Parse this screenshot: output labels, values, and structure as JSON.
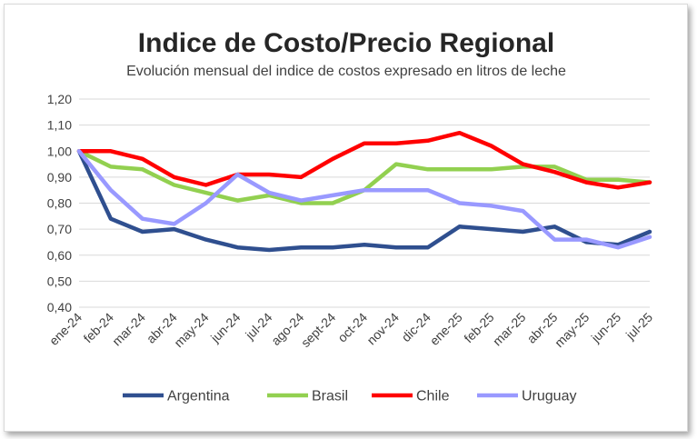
{
  "chart_data": {
    "type": "line",
    "title": "Indice de Costo/Precio Regional",
    "subtitle": "Evolución mensual del indice de costos expresado en litros de leche",
    "xlabel": "",
    "ylabel": "",
    "ylim": [
      0.4,
      1.2
    ],
    "ytick_step": 0.1,
    "ytick_labels": [
      "0,40",
      "0,50",
      "0,60",
      "0,70",
      "0,80",
      "0,90",
      "1,00",
      "1,10",
      "1,20"
    ],
    "grid": true,
    "legend_position": "bottom",
    "categories": [
      "ene-24",
      "feb-24",
      "mar-24",
      "abr-24",
      "may-24",
      "jun-24",
      "jul-24",
      "ago-24",
      "sept-24",
      "oct-24",
      "nov-24",
      "dic-24",
      "ene-25",
      "feb-25",
      "mar-25",
      "abr-25",
      "may-25",
      "jun-25",
      "jul-25"
    ],
    "series": [
      {
        "name": "Argentina",
        "color": "#2f4f8f",
        "values": [
          1.0,
          0.74,
          0.69,
          0.7,
          0.66,
          0.63,
          0.62,
          0.63,
          0.63,
          0.64,
          0.63,
          0.63,
          0.71,
          0.7,
          0.69,
          0.71,
          0.65,
          0.64,
          0.69
        ]
      },
      {
        "name": "Brasil",
        "color": "#92d050",
        "values": [
          1.0,
          0.94,
          0.93,
          0.87,
          0.84,
          0.81,
          0.83,
          0.8,
          0.8,
          0.85,
          0.95,
          0.93,
          0.93,
          0.93,
          0.94,
          0.94,
          0.89,
          0.89,
          0.88
        ]
      },
      {
        "name": "Chile",
        "color": "#ff0000",
        "values": [
          1.0,
          1.0,
          0.97,
          0.9,
          0.87,
          0.91,
          0.91,
          0.9,
          0.97,
          1.03,
          1.03,
          1.04,
          1.07,
          1.02,
          0.95,
          0.92,
          0.88,
          0.86,
          0.88
        ]
      },
      {
        "name": "Uruguay",
        "color": "#9999ff",
        "values": [
          1.0,
          0.85,
          0.74,
          0.72,
          0.8,
          0.91,
          0.84,
          0.81,
          0.83,
          0.85,
          0.85,
          0.85,
          0.8,
          0.79,
          0.77,
          0.66,
          0.66,
          0.63,
          0.67
        ]
      }
    ]
  }
}
